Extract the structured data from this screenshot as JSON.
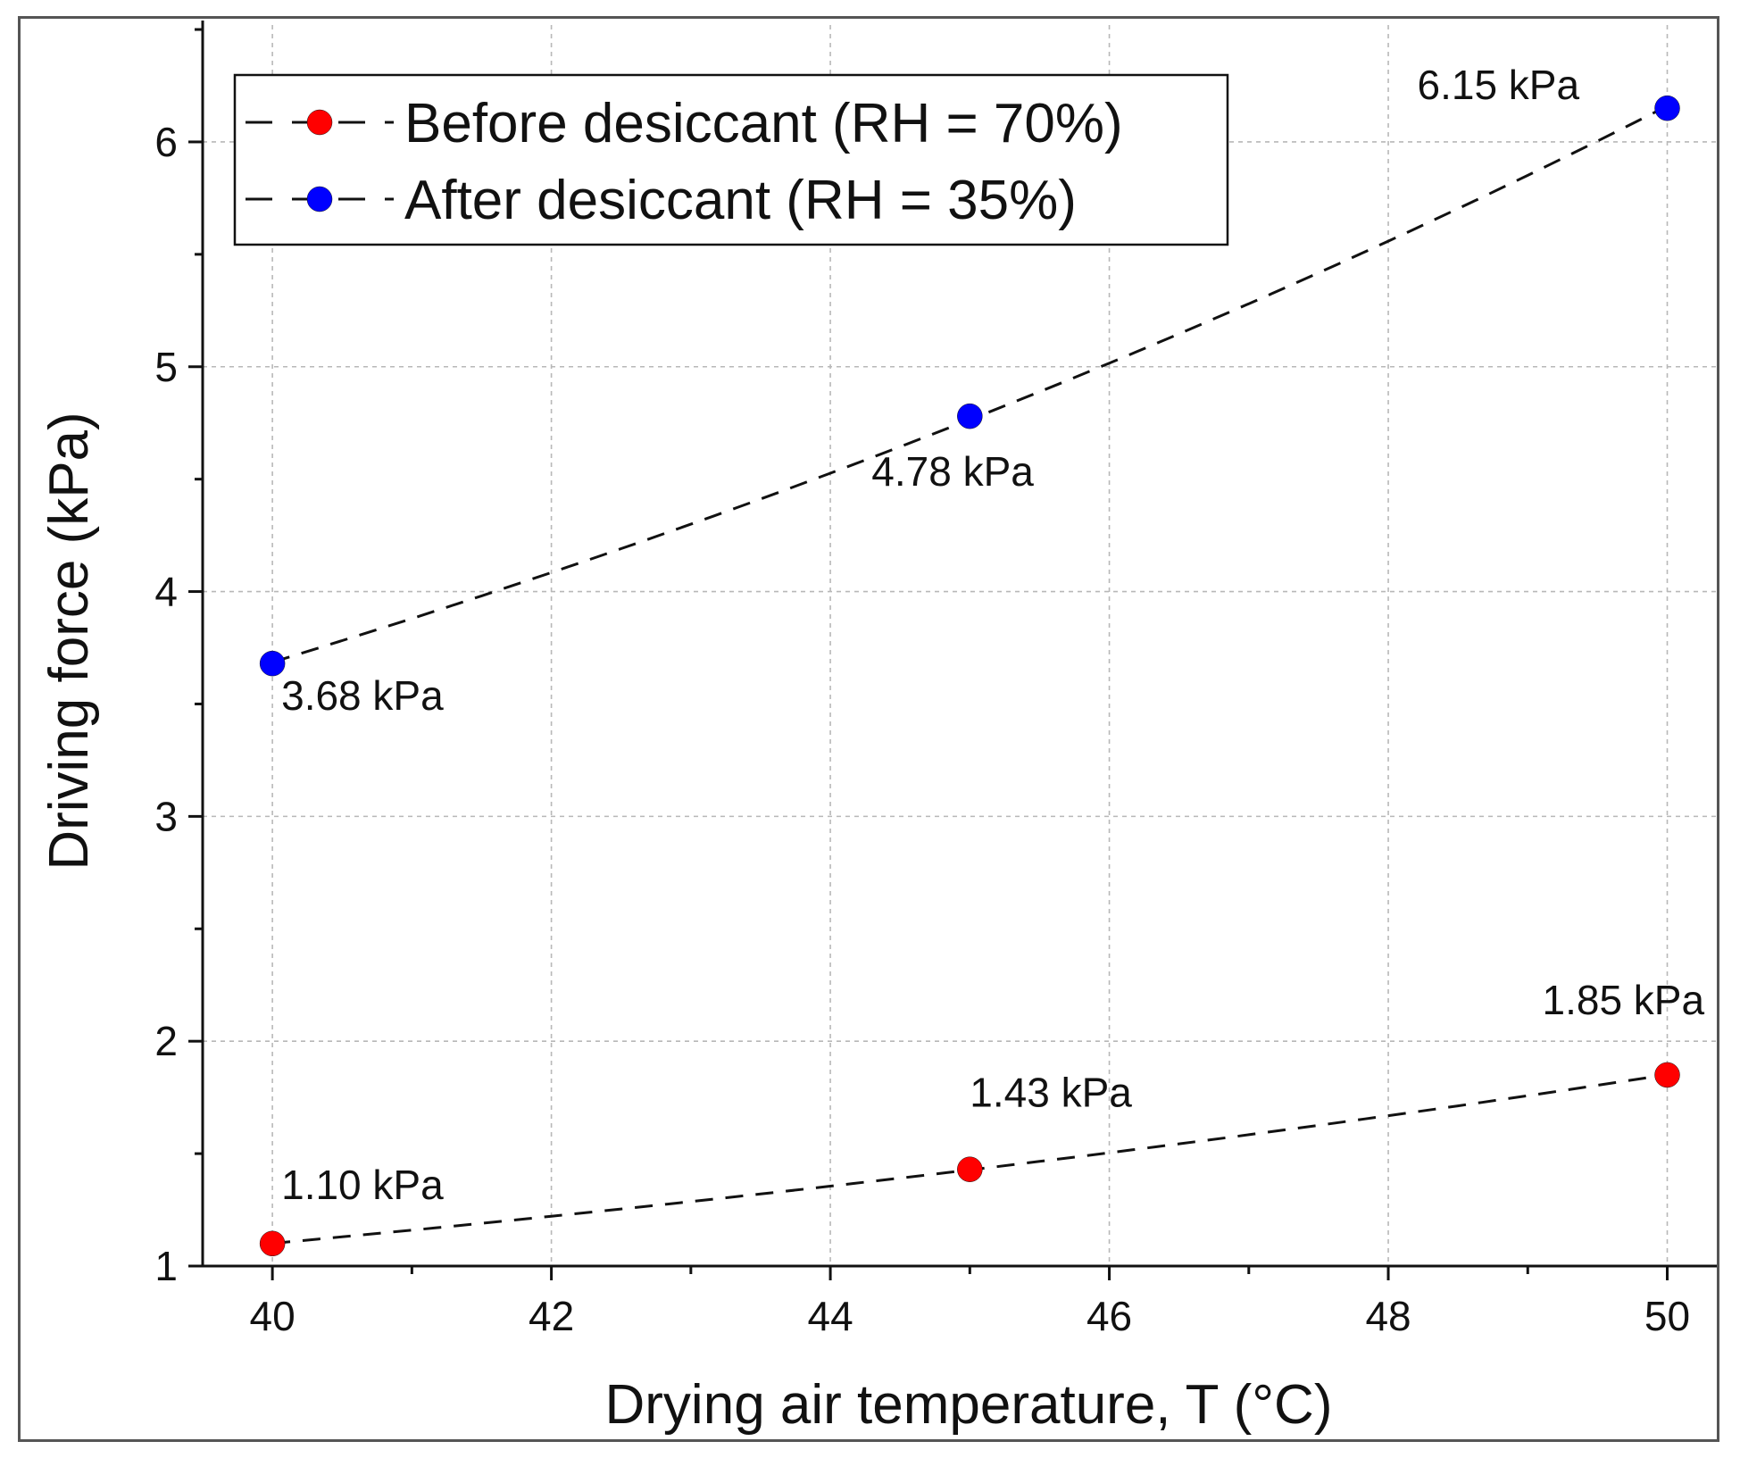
{
  "chart_data": {
    "type": "line",
    "title": "",
    "xlabel": "Drying air temperature, T (°C)",
    "ylabel": "Driving force (kPa)",
    "xlim": [
      39.5,
      50.4
    ],
    "ylim": [
      1,
      6.52
    ],
    "xticks": [
      40,
      42,
      44,
      46,
      48,
      50
    ],
    "yticks": [
      1,
      2,
      3,
      4,
      5,
      6
    ],
    "xtick_labels": [
      "40",
      "42",
      "44",
      "46",
      "48",
      "50"
    ],
    "ytick_labels": [
      "1",
      "2",
      "3",
      "4",
      "5",
      "6"
    ],
    "grid": true,
    "legend_position": "top-left",
    "x": [
      40,
      45,
      50
    ],
    "series": [
      {
        "name": "Before desiccant (RH = 70%)",
        "color": "#ff0000",
        "line_style": "dashed",
        "values": [
          1.1,
          1.43,
          1.85
        ],
        "labels": [
          "1.10 kPa",
          "1.43 kPa",
          "1.85 kPa"
        ]
      },
      {
        "name": "After desiccant (RH = 35%)",
        "color": "#0000ff",
        "line_style": "dashed",
        "values": [
          3.68,
          4.78,
          6.15
        ],
        "labels": [
          "3.68 kPa",
          "4.78 kPa",
          "6.15 kPa"
        ]
      }
    ]
  }
}
